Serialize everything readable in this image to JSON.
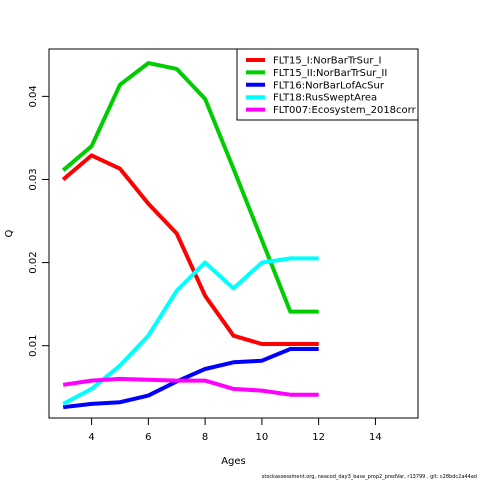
{
  "chart_data": {
    "type": "line",
    "xlabel": "Ages",
    "ylabel": "Q",
    "xlim": [
      2.5,
      15.5
    ],
    "ylim": [
      0.0013,
      0.0457
    ],
    "x_ticks": [
      4,
      6,
      8,
      10,
      12,
      14
    ],
    "y_ticks": [
      0.01,
      0.02,
      0.03,
      0.04
    ],
    "legend_position": "top-right",
    "grid": false,
    "series": [
      {
        "name": "FLT15_I:NorBarTrSur_I",
        "color": "#ff0000",
        "x": [
          3,
          4,
          5,
          6,
          7,
          8,
          9,
          10,
          11,
          12
        ],
        "y": [
          0.03,
          0.0329,
          0.0313,
          0.0271,
          0.0235,
          0.016,
          0.0112,
          0.0102,
          0.0102,
          0.0102
        ]
      },
      {
        "name": "FLT15_II:NorBarTrSur_II",
        "color": "#00cd00",
        "x": [
          3,
          4,
          5,
          6,
          7,
          8,
          9,
          10,
          11,
          12
        ],
        "y": [
          0.0311,
          0.034,
          0.0414,
          0.044,
          0.0433,
          0.0397,
          0.0313,
          0.0227,
          0.0141,
          0.0141
        ]
      },
      {
        "name": "FLT16:NorBarLofAcSur",
        "color": "#0000ff",
        "x": [
          3,
          4,
          5,
          6,
          7,
          8,
          9,
          10,
          11,
          12
        ],
        "y": [
          0.0026,
          0.003,
          0.0032,
          0.004,
          0.0057,
          0.0072,
          0.008,
          0.0082,
          0.0096,
          0.0096
        ]
      },
      {
        "name": "FLT18:RusSweptArea",
        "color": "#00ffff",
        "x": [
          3,
          4,
          5,
          6,
          7,
          8,
          9,
          10,
          11,
          12
        ],
        "y": [
          0.003,
          0.0048,
          0.0076,
          0.0112,
          0.0166,
          0.02,
          0.0169,
          0.02,
          0.0205,
          0.0205
        ]
      },
      {
        "name": "FLT007:Ecosystem_2018corr",
        "color": "#ff00ff",
        "x": [
          3,
          4,
          5,
          6,
          7,
          8,
          9,
          10,
          11,
          12
        ],
        "y": [
          0.0053,
          0.0058,
          0.006,
          0.0059,
          0.0058,
          0.0058,
          0.0048,
          0.0046,
          0.0041,
          0.0041
        ]
      }
    ]
  },
  "footer": "stockassessment.org, neacod_day3_base_prop2_predVar, r13799 , git: c28bdc2a44ad"
}
